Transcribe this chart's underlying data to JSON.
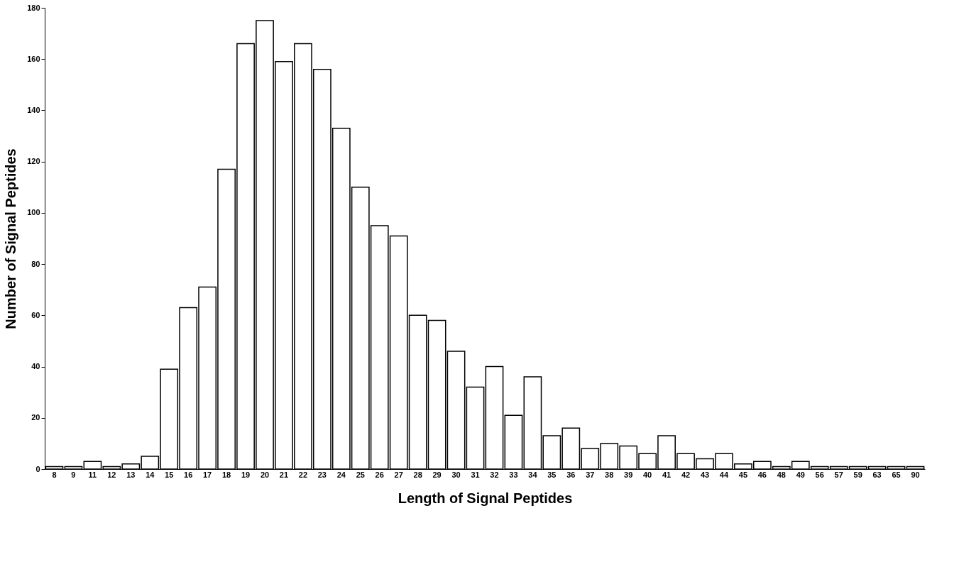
{
  "chart_data": {
    "type": "bar",
    "xlabel": "Length of Signal Peptides",
    "ylabel": "Number of Signal Peptides",
    "categories": [
      "8",
      "9",
      "11",
      "12",
      "13",
      "14",
      "15",
      "16",
      "17",
      "18",
      "19",
      "20",
      "21",
      "22",
      "23",
      "24",
      "25",
      "26",
      "27",
      "28",
      "29",
      "30",
      "31",
      "32",
      "33",
      "34",
      "35",
      "36",
      "37",
      "38",
      "39",
      "40",
      "41",
      "42",
      "43",
      "44",
      "45",
      "46",
      "48",
      "49",
      "56",
      "57",
      "59",
      "63",
      "65",
      "90"
    ],
    "values": [
      1,
      1,
      3,
      1,
      2,
      5,
      39,
      63,
      71,
      117,
      166,
      175,
      159,
      166,
      156,
      133,
      110,
      95,
      91,
      60,
      58,
      46,
      32,
      40,
      21,
      36,
      13,
      16,
      8,
      10,
      9,
      6,
      13,
      6,
      4,
      6,
      2,
      3,
      1,
      3,
      1,
      1,
      1,
      1,
      1,
      1
    ],
    "color": "#ffffff",
    "ylim": [
      0,
      180
    ],
    "yticks": [
      0,
      20,
      40,
      60,
      80,
      100,
      120,
      140,
      160,
      180
    ],
    "grid": false
  }
}
